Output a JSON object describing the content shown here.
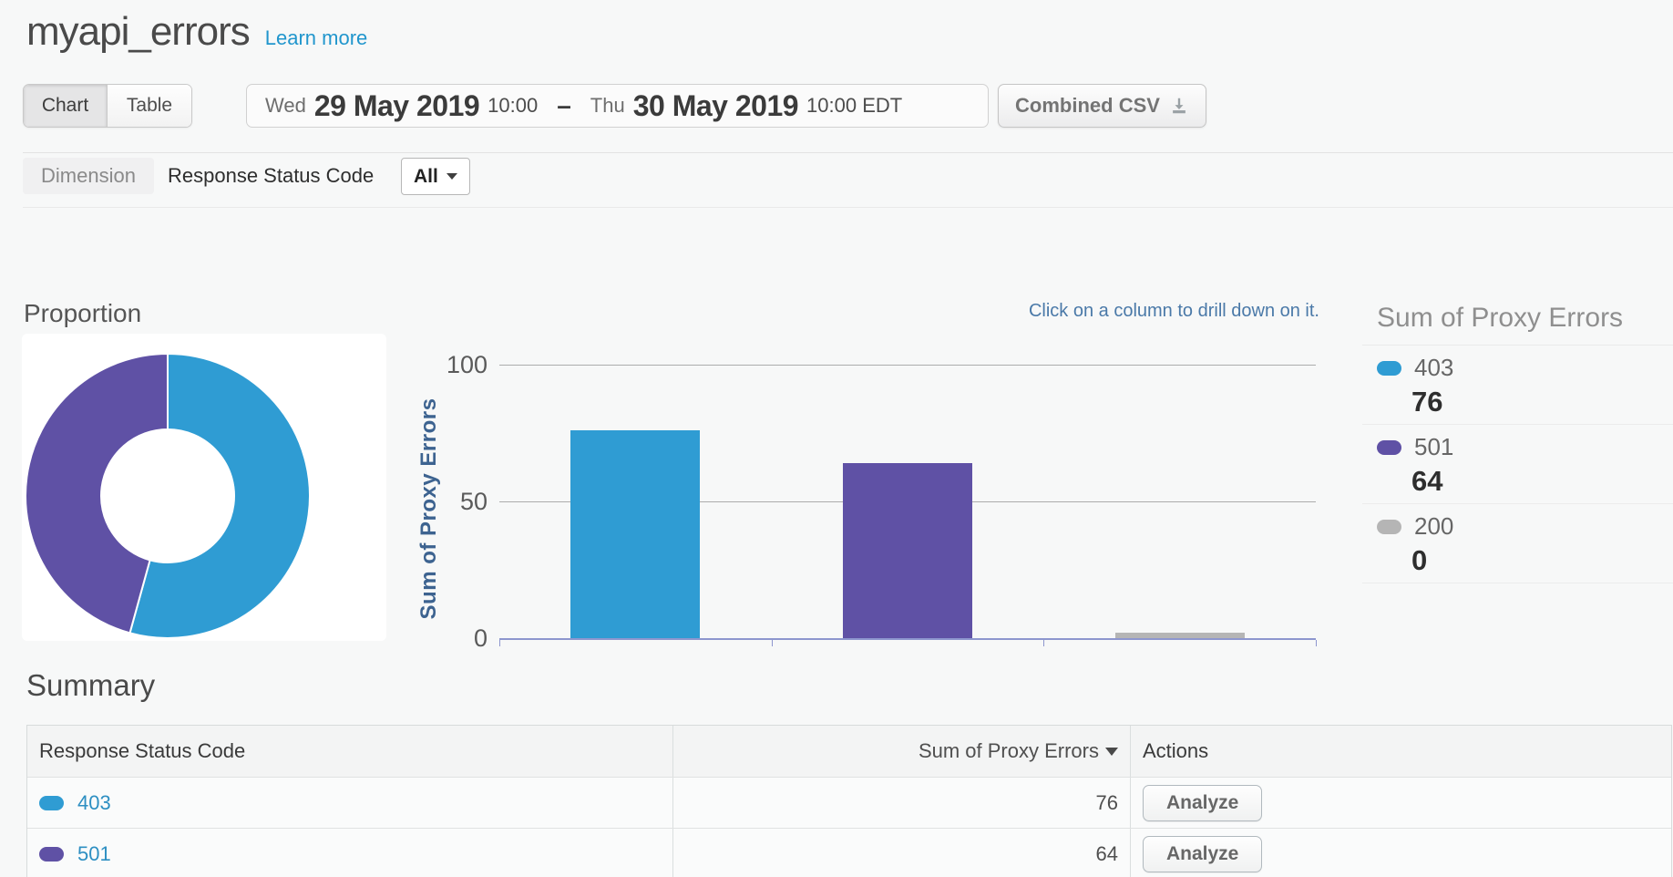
{
  "page": {
    "title": "myapi_errors",
    "learn_more": "Learn more"
  },
  "toolbar": {
    "view_toggle": {
      "chart_label": "Chart",
      "table_label": "Table",
      "active": "Chart"
    },
    "date_range": {
      "start_day": "Wed",
      "start_date": "29 May 2019",
      "start_time": "10:00",
      "separator": "–",
      "end_day": "Thu",
      "end_date": "30 May 2019",
      "end_time": "10:00 EDT"
    },
    "export_label": "Combined CSV"
  },
  "dimension_bar": {
    "dimension_label": "Dimension",
    "dimension_name": "Response Status Code",
    "filter_value": "All"
  },
  "charts": {
    "proportion_title": "Proportion",
    "drill_hint": "Click on a column to drill down on it.",
    "legend_title": "Sum of Proxy Errors"
  },
  "chart_data": [
    {
      "type": "pie",
      "subtype": "donut",
      "title": "Proportion",
      "labels": [
        "403",
        "501"
      ],
      "values": [
        76,
        64
      ],
      "colors": [
        "#2f9cd3",
        "#5f51a5"
      ]
    },
    {
      "type": "bar",
      "ylabel": "Sum of Proxy Errors",
      "categories": [
        "403",
        "501",
        "200"
      ],
      "values": [
        76,
        64,
        0
      ],
      "colors": [
        "#2f9cd3",
        "#5f51a5",
        "#b5b5b5"
      ],
      "ylim": [
        0,
        100
      ],
      "yticks": [
        0,
        50,
        100
      ],
      "grid": true,
      "legend_position": "right",
      "legend": {
        "title": "Sum of Proxy Errors",
        "entries": [
          {
            "label": "403",
            "value": "76",
            "color": "#2f9cd3"
          },
          {
            "label": "501",
            "value": "64",
            "color": "#5f51a5"
          },
          {
            "label": "200",
            "value": "0",
            "color": "#b5b5b5"
          }
        ]
      }
    }
  ],
  "summary": {
    "title": "Summary",
    "table": {
      "columns": [
        "Response Status Code",
        "Sum of Proxy Errors",
        "Actions"
      ],
      "sorted_column": "Sum of Proxy Errors",
      "sort_direction": "desc",
      "rows": [
        {
          "status_code": "403",
          "sum_of_proxy_errors": "76",
          "action_label": "Analyze",
          "color": "#2f9cd3"
        },
        {
          "status_code": "501",
          "sum_of_proxy_errors": "64",
          "action_label": "Analyze",
          "color": "#5f51a5"
        }
      ]
    }
  }
}
